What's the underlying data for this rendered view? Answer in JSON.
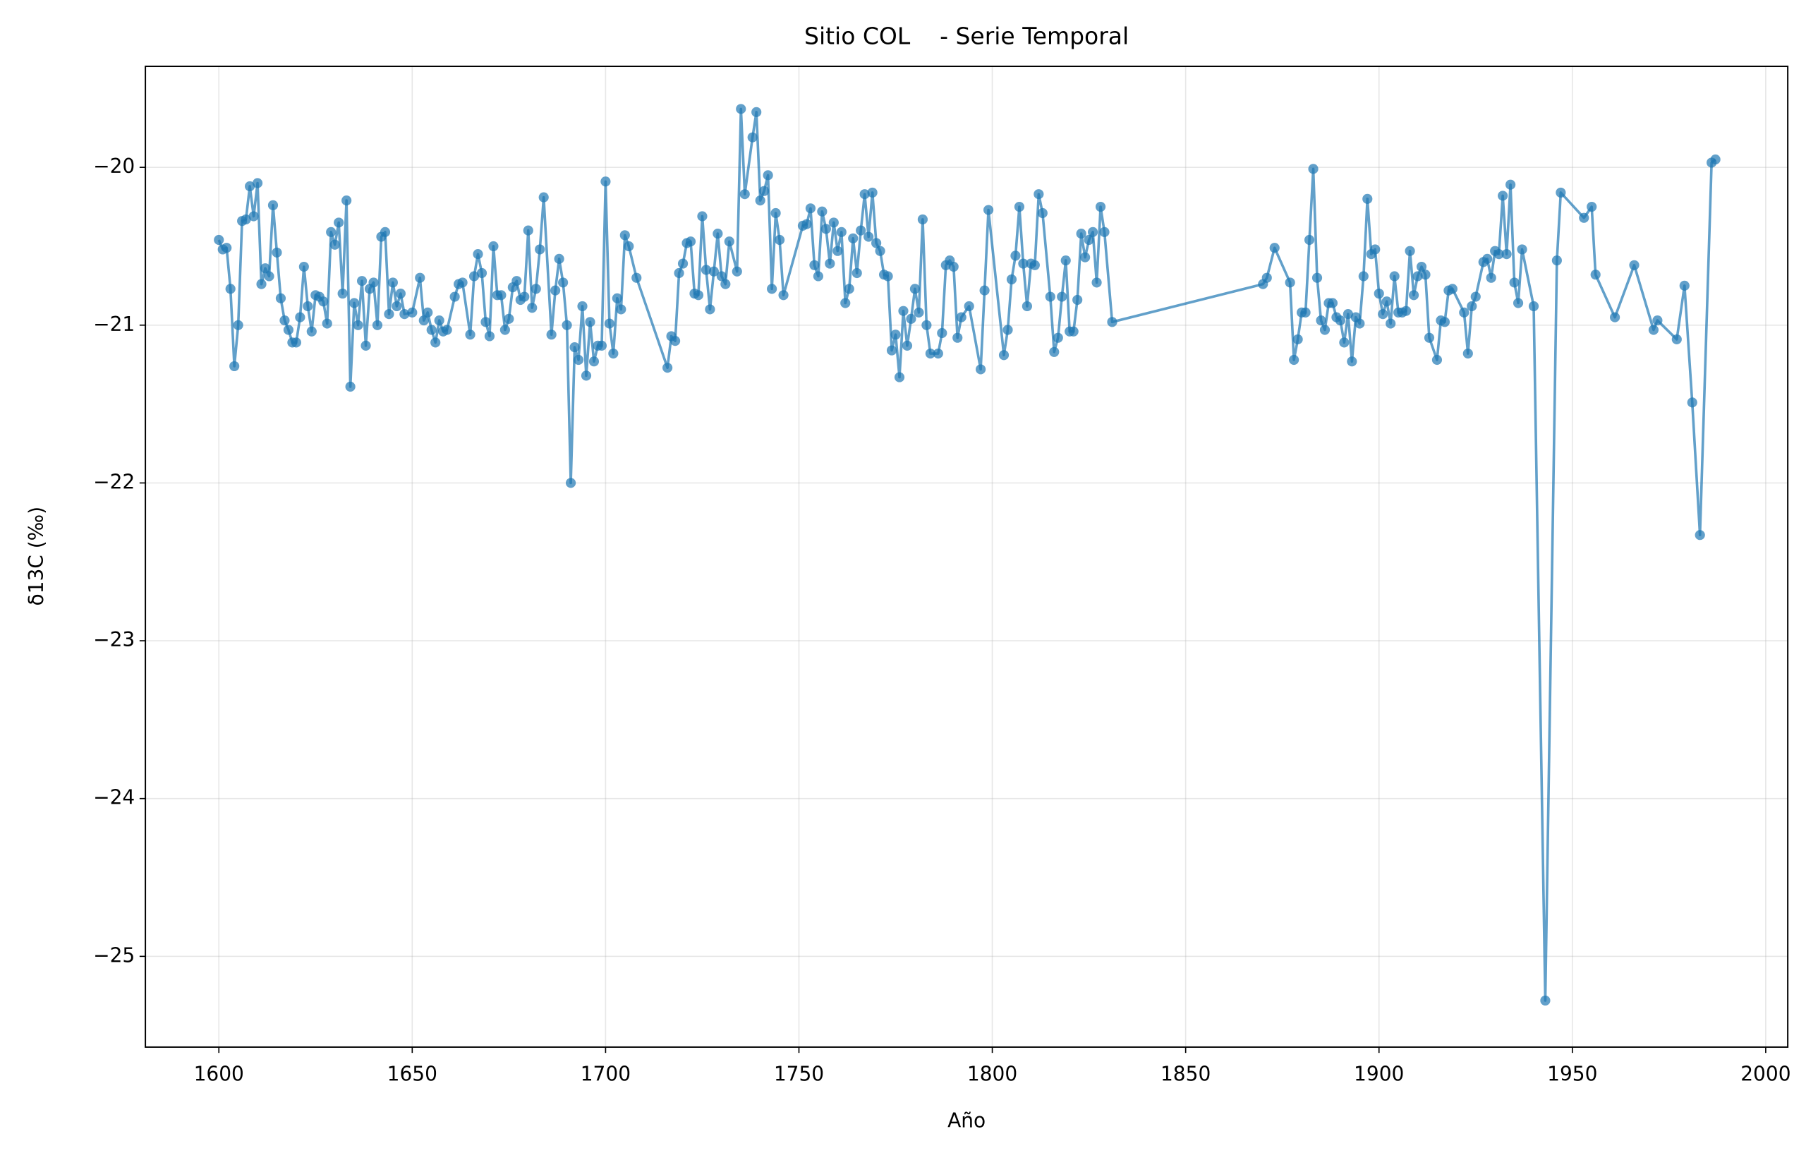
{
  "chart_data": {
    "type": "line",
    "title": "Sitio COL    - Serie Temporal",
    "x_label": "Año",
    "y_label": "δ13C (‰)",
    "color": "#1f77b4",
    "grid": true,
    "xlim": [
      1581,
      2005.7
    ],
    "ylim": [
      -25.575,
      -19.36
    ],
    "xticks": [
      1600,
      1650,
      1700,
      1750,
      1800,
      1850,
      1900,
      1950,
      2000
    ],
    "yticks": [
      {
        "value": -25,
        "label": "−25"
      },
      {
        "value": -24,
        "label": "−24"
      },
      {
        "value": -23,
        "label": "−23"
      },
      {
        "value": -22,
        "label": "−22"
      },
      {
        "value": -21,
        "label": "−21"
      },
      {
        "value": -20,
        "label": "−20"
      }
    ],
    "x": [
      1600,
      1601,
      1602,
      1603,
      1604,
      1605,
      1606,
      1607,
      1608,
      1609,
      1610,
      1611,
      1612,
      1613,
      1614,
      1615,
      1616,
      1617,
      1618,
      1619,
      1620,
      1621,
      1622,
      1623,
      1624,
      1625,
      1626,
      1627,
      1628,
      1629,
      1630,
      1631,
      1632,
      1633,
      1634,
      1635,
      1636,
      1637,
      1638,
      1639,
      1640,
      1641,
      1642,
      1643,
      1644,
      1645,
      1646,
      1647,
      1648,
      1650,
      1652,
      1653,
      1654,
      1655,
      1656,
      1657,
      1658,
      1659,
      1661,
      1662,
      1663,
      1665,
      1666,
      1667,
      1668,
      1669,
      1670,
      1671,
      1672,
      1673,
      1674,
      1675,
      1676,
      1677,
      1678,
      1679,
      1680,
      1681,
      1682,
      1683,
      1684,
      1686,
      1687,
      1688,
      1689,
      1690,
      1691,
      1692,
      1693,
      1694,
      1695,
      1696,
      1697,
      1698,
      1699,
      1700,
      1701,
      1702,
      1703,
      1704,
      1705,
      1706,
      1708,
      1716,
      1717,
      1718,
      1719,
      1720,
      1721,
      1722,
      1723,
      1724,
      1725,
      1726,
      1727,
      1728,
      1729,
      1730,
      1731,
      1732,
      1734,
      1735,
      1736,
      1738,
      1739,
      1740,
      1741,
      1742,
      1743,
      1744,
      1745,
      1746,
      1751,
      1752,
      1753,
      1754,
      1755,
      1756,
      1757,
      1758,
      1759,
      1760,
      1761,
      1762,
      1763,
      1764,
      1765,
      1766,
      1767,
      1768,
      1769,
      1770,
      1771,
      1772,
      1773,
      1774,
      1775,
      1776,
      1777,
      1778,
      1779,
      1780,
      1781,
      1782,
      1783,
      1784,
      1786,
      1787,
      1788,
      1789,
      1790,
      1791,
      1792,
      1794,
      1797,
      1798,
      1799,
      1803,
      1804,
      1805,
      1806,
      1807,
      1808,
      1809,
      1810,
      1811,
      1812,
      1813,
      1815,
      1816,
      1817,
      1818,
      1819,
      1820,
      1821,
      1822,
      1823,
      1824,
      1825,
      1826,
      1827,
      1828,
      1829,
      1831,
      1870,
      1871,
      1873,
      1877,
      1878,
      1879,
      1880,
      1881,
      1882,
      1883,
      1884,
      1885,
      1886,
      1887,
      1888,
      1889,
      1890,
      1891,
      1892,
      1893,
      1894,
      1895,
      1896,
      1897,
      1898,
      1899,
      1900,
      1901,
      1902,
      1903,
      1904,
      1905,
      1906,
      1907,
      1908,
      1909,
      1910,
      1911,
      1912,
      1913,
      1915,
      1916,
      1917,
      1918,
      1919,
      1922,
      1923,
      1924,
      1925,
      1927,
      1928,
      1929,
      1930,
      1931,
      1932,
      1933,
      1934,
      1935,
      1936,
      1937,
      1940,
      1943,
      1946,
      1947,
      1953,
      1955,
      1956,
      1961,
      1966,
      1971,
      1972,
      1977,
      1979,
      1981,
      1983,
      1986,
      1987
    ],
    "values": [
      -20.46,
      -20.52,
      -20.51,
      -20.77,
      -21.26,
      -21.0,
      -20.34,
      -20.33,
      -20.12,
      -20.31,
      -20.1,
      -20.74,
      -20.64,
      -20.69,
      -20.24,
      -20.54,
      -20.83,
      -20.97,
      -21.03,
      -21.11,
      -21.11,
      -20.95,
      -20.63,
      -20.88,
      -21.04,
      -20.81,
      -20.82,
      -20.85,
      -20.99,
      -20.41,
      -20.49,
      -20.35,
      -20.8,
      -20.21,
      -21.39,
      -20.86,
      -21.0,
      -20.72,
      -21.13,
      -20.77,
      -20.73,
      -21.0,
      -20.44,
      -20.41,
      -20.93,
      -20.73,
      -20.88,
      -20.8,
      -20.93,
      -20.92,
      -20.7,
      -20.97,
      -20.92,
      -21.03,
      -21.11,
      -20.97,
      -21.04,
      -21.03,
      -20.82,
      -20.74,
      -20.73,
      -21.06,
      -20.69,
      -20.55,
      -20.67,
      -20.98,
      -21.07,
      -20.5,
      -20.81,
      -20.81,
      -21.03,
      -20.96,
      -20.76,
      -20.72,
      -20.84,
      -20.82,
      -20.4,
      -20.89,
      -20.77,
      -20.52,
      -20.19,
      -21.06,
      -20.78,
      -20.58,
      -20.73,
      -21.0,
      -22.0,
      -21.14,
      -21.22,
      -20.88,
      -21.32,
      -20.98,
      -21.23,
      -21.13,
      -21.13,
      -20.09,
      -20.99,
      -21.18,
      -20.83,
      -20.9,
      -20.43,
      -20.5,
      -20.7,
      -21.27,
      -21.07,
      -21.1,
      -20.67,
      -20.61,
      -20.48,
      -20.47,
      -20.8,
      -20.81,
      -20.31,
      -20.65,
      -20.9,
      -20.66,
      -20.42,
      -20.69,
      -20.74,
      -20.47,
      -20.66,
      -19.63,
      -20.17,
      -19.81,
      -19.65,
      -20.21,
      -20.15,
      -20.05,
      -20.77,
      -20.29,
      -20.46,
      -20.81,
      -20.37,
      -20.36,
      -20.26,
      -20.62,
      -20.69,
      -20.28,
      -20.39,
      -20.61,
      -20.35,
      -20.53,
      -20.41,
      -20.86,
      -20.77,
      -20.45,
      -20.67,
      -20.4,
      -20.17,
      -20.44,
      -20.16,
      -20.48,
      -20.53,
      -20.68,
      -20.69,
      -21.16,
      -21.06,
      -21.33,
      -20.91,
      -21.13,
      -20.96,
      -20.77,
      -20.92,
      -20.33,
      -21.0,
      -21.18,
      -21.18,
      -21.05,
      -20.62,
      -20.59,
      -20.63,
      -21.08,
      -20.95,
      -20.88,
      -21.28,
      -20.78,
      -20.27,
      -21.19,
      -21.03,
      -20.71,
      -20.56,
      -20.25,
      -20.61,
      -20.88,
      -20.61,
      -20.62,
      -20.17,
      -20.29,
      -20.82,
      -21.17,
      -21.08,
      -20.82,
      -20.59,
      -21.04,
      -21.04,
      -20.84,
      -20.42,
      -20.57,
      -20.46,
      -20.41,
      -20.73,
      -20.25,
      -20.41,
      -20.98,
      -20.74,
      -20.7,
      -20.51,
      -20.73,
      -21.22,
      -21.09,
      -20.92,
      -20.92,
      -20.46,
      -20.01,
      -20.7,
      -20.97,
      -21.03,
      -20.86,
      -20.86,
      -20.95,
      -20.97,
      -21.11,
      -20.93,
      -21.23,
      -20.95,
      -20.99,
      -20.69,
      -20.2,
      -20.55,
      -20.52,
      -20.8,
      -20.93,
      -20.85,
      -20.99,
      -20.69,
      -20.92,
      -20.92,
      -20.91,
      -20.53,
      -20.81,
      -20.69,
      -20.63,
      -20.68,
      -21.08,
      -21.22,
      -20.97,
      -20.98,
      -20.78,
      -20.77,
      -20.92,
      -21.18,
      -20.88,
      -20.82,
      -20.6,
      -20.58,
      -20.7,
      -20.53,
      -20.55,
      -20.18,
      -20.55,
      -20.11,
      -20.73,
      -20.86,
      -20.52,
      -20.88,
      -25.28,
      -20.59,
      -20.16,
      -20.32,
      -20.25,
      -20.68,
      -20.95,
      -20.62,
      -21.03,
      -20.97,
      -21.09,
      -20.75,
      -21.49,
      -22.33,
      -19.97,
      -19.95
    ]
  }
}
